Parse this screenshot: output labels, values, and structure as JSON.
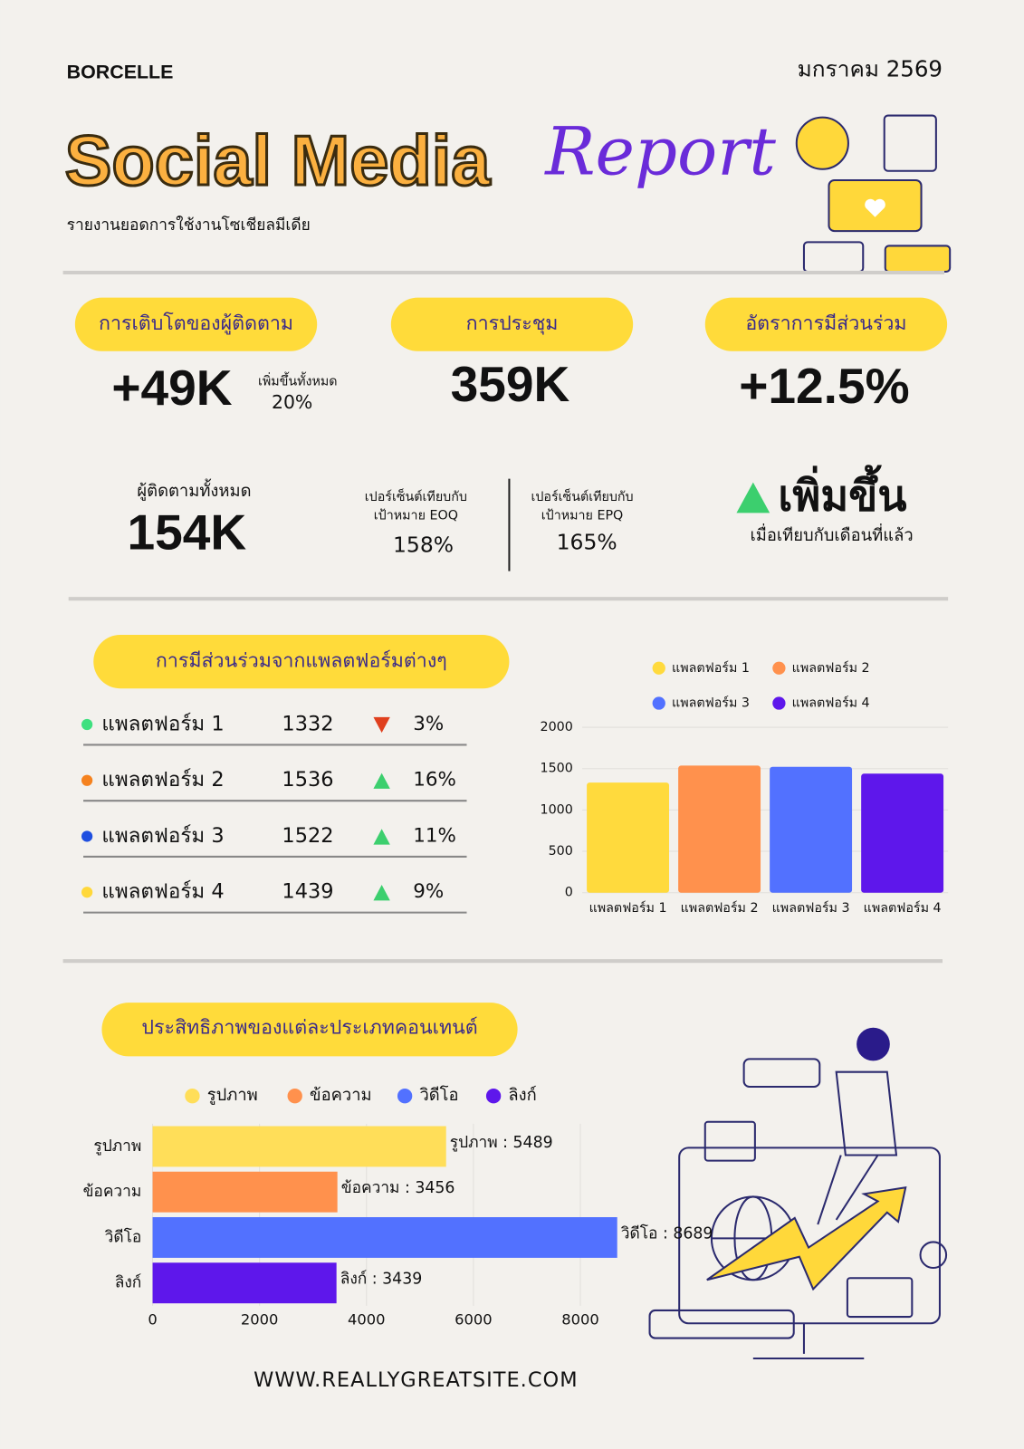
{
  "header": {
    "brand": "BORCELLE",
    "date": "มกราคม 2569",
    "title": "Social Media",
    "title_script": "Report",
    "subtitle": "รายงานยอดการใช้งานโซเชียลมีเดีย"
  },
  "kpis": [
    {
      "label": "การเติบโตของผู้ติดตาม",
      "value": "+49K",
      "note": "เพิ่มขึ้นทั้งหมด",
      "note_value": "20%"
    },
    {
      "label": "การประชุม",
      "value": "359K"
    },
    {
      "label": "อัตราการมีส่วนร่วม",
      "value": "+12.5%"
    }
  ],
  "stats": {
    "followers_label": "ผู้ติดตามทั้งหมด",
    "followers_value": "154K",
    "eoq_label": [
      "เปอร์เซ็นต์เทียบกับ",
      "เป้าหมาย EOQ"
    ],
    "eoq_value": "158%",
    "epq_label": [
      "เปอร์เซ็นต์เทียบกับ",
      "เป้าหมาย EPQ"
    ],
    "epq_value": "165%",
    "trend_label": "เพิ่มขึ้น",
    "trend_note": "เมื่อเทียบกับเดือนที่แล้ว"
  },
  "platforms": {
    "title": "การมีส่วนร่วมจากแพลตฟอร์มต่างๆ",
    "rows": [
      {
        "name": "แพลตฟอร์ม 1",
        "value": 1332,
        "change": "3%",
        "direction": "down",
        "dot_color": "#3ee07f"
      },
      {
        "name": "แพลตฟอร์ม 2",
        "value": 1536,
        "change": "16%",
        "direction": "up",
        "dot_color": "#f5821f"
      },
      {
        "name": "แพลตฟอร์ม 3",
        "value": 1522,
        "change": "11%",
        "direction": "up",
        "dot_color": "#1f4fe0"
      },
      {
        "name": "แพลตฟอร์ม 4",
        "value": 1439,
        "change": "9%",
        "direction": "up",
        "dot_color": "#ffd83a"
      }
    ]
  },
  "content_title": "ประสิทธิภาพของแต่ละประเภทคอนเทนต์",
  "footer": {
    "url": "WWW.REALLYGREATSITE.COM"
  },
  "chart_data": [
    {
      "type": "bar",
      "categories": [
        "แพลตฟอร์ม 1",
        "แพลตฟอร์ม 2",
        "แพลตฟอร์ม 3",
        "แพลตฟอร์ม 4"
      ],
      "values": [
        1332,
        1536,
        1522,
        1439
      ],
      "colors": [
        "#ffda3d",
        "#ff914d",
        "#5271ff",
        "#5e17eb"
      ],
      "ylim": [
        0,
        2000
      ],
      "yticks": [
        0,
        500,
        1000,
        1500,
        2000
      ],
      "grid": true
    },
    {
      "type": "hbar",
      "categories": [
        "รูปภาพ",
        "ข้อความ",
        "วิดีโอ",
        "ลิงก์"
      ],
      "values": [
        5489,
        3456,
        8689,
        3439
      ],
      "value_labels": [
        "รูปภาพ : 5489",
        "ข้อความ : 3456",
        "วิดีโอ : 8689",
        "ลิงก์ : 3439"
      ],
      "colors": [
        "#ffde59",
        "#ff914d",
        "#5271ff",
        "#5e17eb"
      ],
      "xlim": [
        0,
        8000
      ],
      "xticks": [
        0,
        2000,
        4000,
        6000,
        8000
      ],
      "grid": true
    }
  ]
}
